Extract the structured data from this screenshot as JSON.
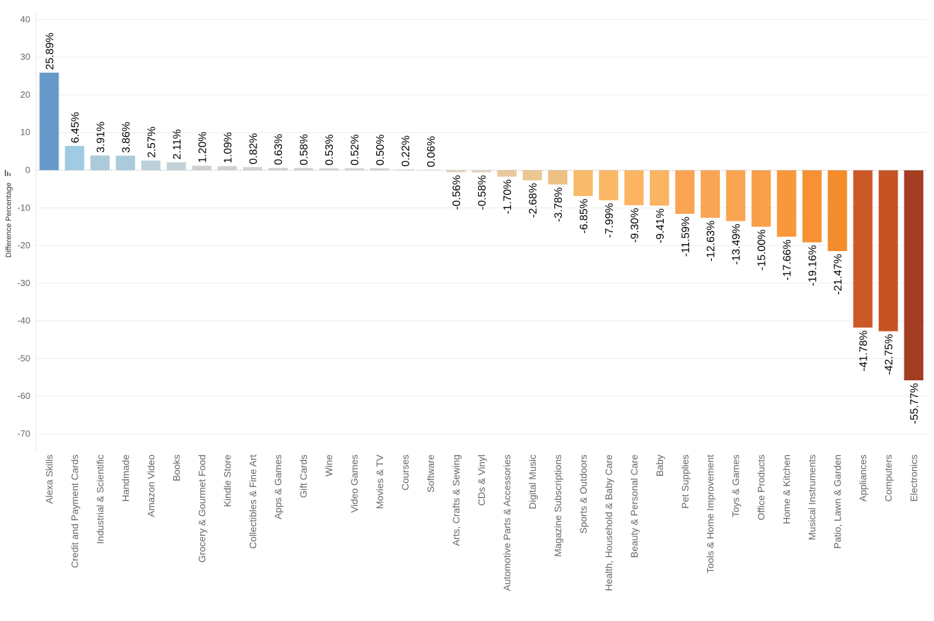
{
  "chart_data": {
    "type": "bar",
    "ylabel": "Difference Percentage",
    "ylim": [
      -75,
      40
    ],
    "yticks": [
      40,
      30,
      20,
      10,
      0,
      -10,
      -20,
      -30,
      -40,
      -50,
      -60,
      -70
    ],
    "ytick_labels": [
      "40",
      "30",
      "20",
      "10",
      "0",
      "-10",
      "-20",
      "-30",
      "-40",
      "-50",
      "-60",
      "-70"
    ],
    "grid": true,
    "categories": [
      "Alexa Skills",
      "Credit and Payment Cards",
      "Industrial & Scientific",
      "Handmade",
      "Amazon Video",
      "Books",
      "Grocery & Gourmet Food",
      "Kindle Store",
      "Collectibles & Fine Art",
      "Apps & Games",
      "Gift Cards",
      "Wine",
      "Video Games",
      "Movies & TV",
      "Courses",
      "Software",
      "Arts, Crafts & Sewing",
      "CDs & Vinyl",
      "Automotive Parts & Accessories",
      "Digital Music",
      "Magazine Subscriptions",
      "Sports & Outdoors",
      "Health, Household & Baby Care",
      "Beauty & Personal Care",
      "Baby",
      "Pet Supplies",
      "Tools & Home Improvement",
      "Toys & Games",
      "Office Products",
      "Home & Kitchen",
      "Musical Instruments",
      "Patio, Lawn & Garden",
      "Appliances",
      "Computers",
      "Electronics"
    ],
    "values": [
      25.89,
      6.45,
      3.91,
      3.86,
      2.57,
      2.11,
      1.2,
      1.09,
      0.82,
      0.63,
      0.58,
      0.53,
      0.52,
      0.5,
      0.22,
      0.06,
      -0.56,
      -0.58,
      -1.7,
      -2.68,
      -3.78,
      -6.85,
      -7.99,
      -9.3,
      -9.41,
      -11.59,
      -12.63,
      -13.49,
      -15.0,
      -17.66,
      -19.16,
      -21.47,
      -41.78,
      -42.75,
      -55.77
    ],
    "data_labels": [
      "25.89%",
      "6.45%",
      "3.91%",
      "3.86%",
      "2.57%",
      "2.11%",
      "1.20%",
      "1.09%",
      "0.82%",
      "0.63%",
      "0.58%",
      "0.53%",
      "0.52%",
      "0.50%",
      "0.22%",
      "0.06%",
      "-0.56%",
      "-0.58%",
      "-1.70%",
      "-2.68%",
      "-3.78%",
      "-6.85%",
      "-7.99%",
      "-9.30%",
      "-9.41%",
      "-11.59%",
      "-12.63%",
      "-13.49%",
      "-15.00%",
      "-17.66%",
      "-19.16%",
      "-21.47%",
      "-41.78%",
      "-42.75%",
      "-55.77%"
    ],
    "colors": [
      "#6699c7",
      "#9fcbe4",
      "#abcbdb",
      "#abcbdb",
      "#bcd0d9",
      "#c2d1d8",
      "#cdd1d3",
      "#cdd2d4",
      "#d1d3d3",
      "#d3d3d3",
      "#d3d3d3",
      "#d3d3d3",
      "#d3d3d3",
      "#d3d3d3",
      "#d6d6d6",
      "#dadada",
      "#e3d1ba",
      "#e3d2bc",
      "#e9c89b",
      "#ebc592",
      "#eec083",
      "#f9ba6c",
      "#fab866",
      "#fbb461",
      "#fbb461",
      "#f9a553",
      "#f9a553",
      "#f9a450",
      "#f99f49",
      "#f8973c",
      "#f69233",
      "#f58c2c",
      "#cb5827",
      "#c65423",
      "#a33c21"
    ]
  }
}
